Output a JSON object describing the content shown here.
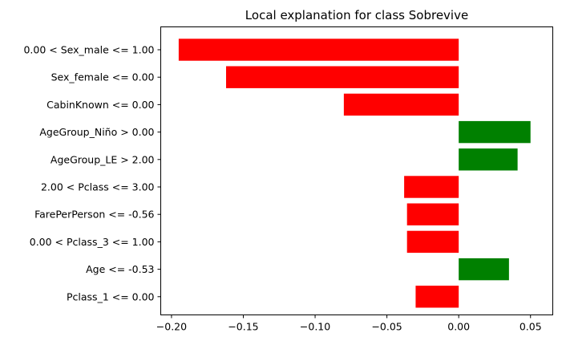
{
  "chart_data": {
    "type": "bar",
    "orientation": "horizontal",
    "title": "Local explanation for class Sobrevive",
    "xlabel": "",
    "ylabel": "",
    "xlim": [
      -0.2075,
      0.0655
    ],
    "grid": false,
    "colors": {
      "positive": "#008000",
      "negative": "#ff0000"
    },
    "categories": [
      "0.00 < Sex_male <= 1.00",
      "Sex_female <= 0.00",
      "CabinKnown <= 0.00",
      "AgeGroup_Niño > 0.00",
      "AgeGroup_LE > 2.00",
      "2.00 < Pclass <= 3.00",
      "FarePerPerson <= -0.56",
      "0.00 < Pclass_3 <= 1.00",
      "Age <= -0.53",
      "Pclass_1 <= 0.00"
    ],
    "values": [
      -0.195,
      -0.162,
      -0.08,
      0.05,
      0.041,
      -0.038,
      -0.036,
      -0.036,
      0.035,
      -0.03
    ],
    "xticks": [
      -0.2,
      -0.15,
      -0.1,
      -0.05,
      0.0,
      0.05
    ],
    "xtick_labels": [
      "−0.20",
      "−0.15",
      "−0.10",
      "−0.05",
      "0.00",
      "0.05"
    ]
  }
}
